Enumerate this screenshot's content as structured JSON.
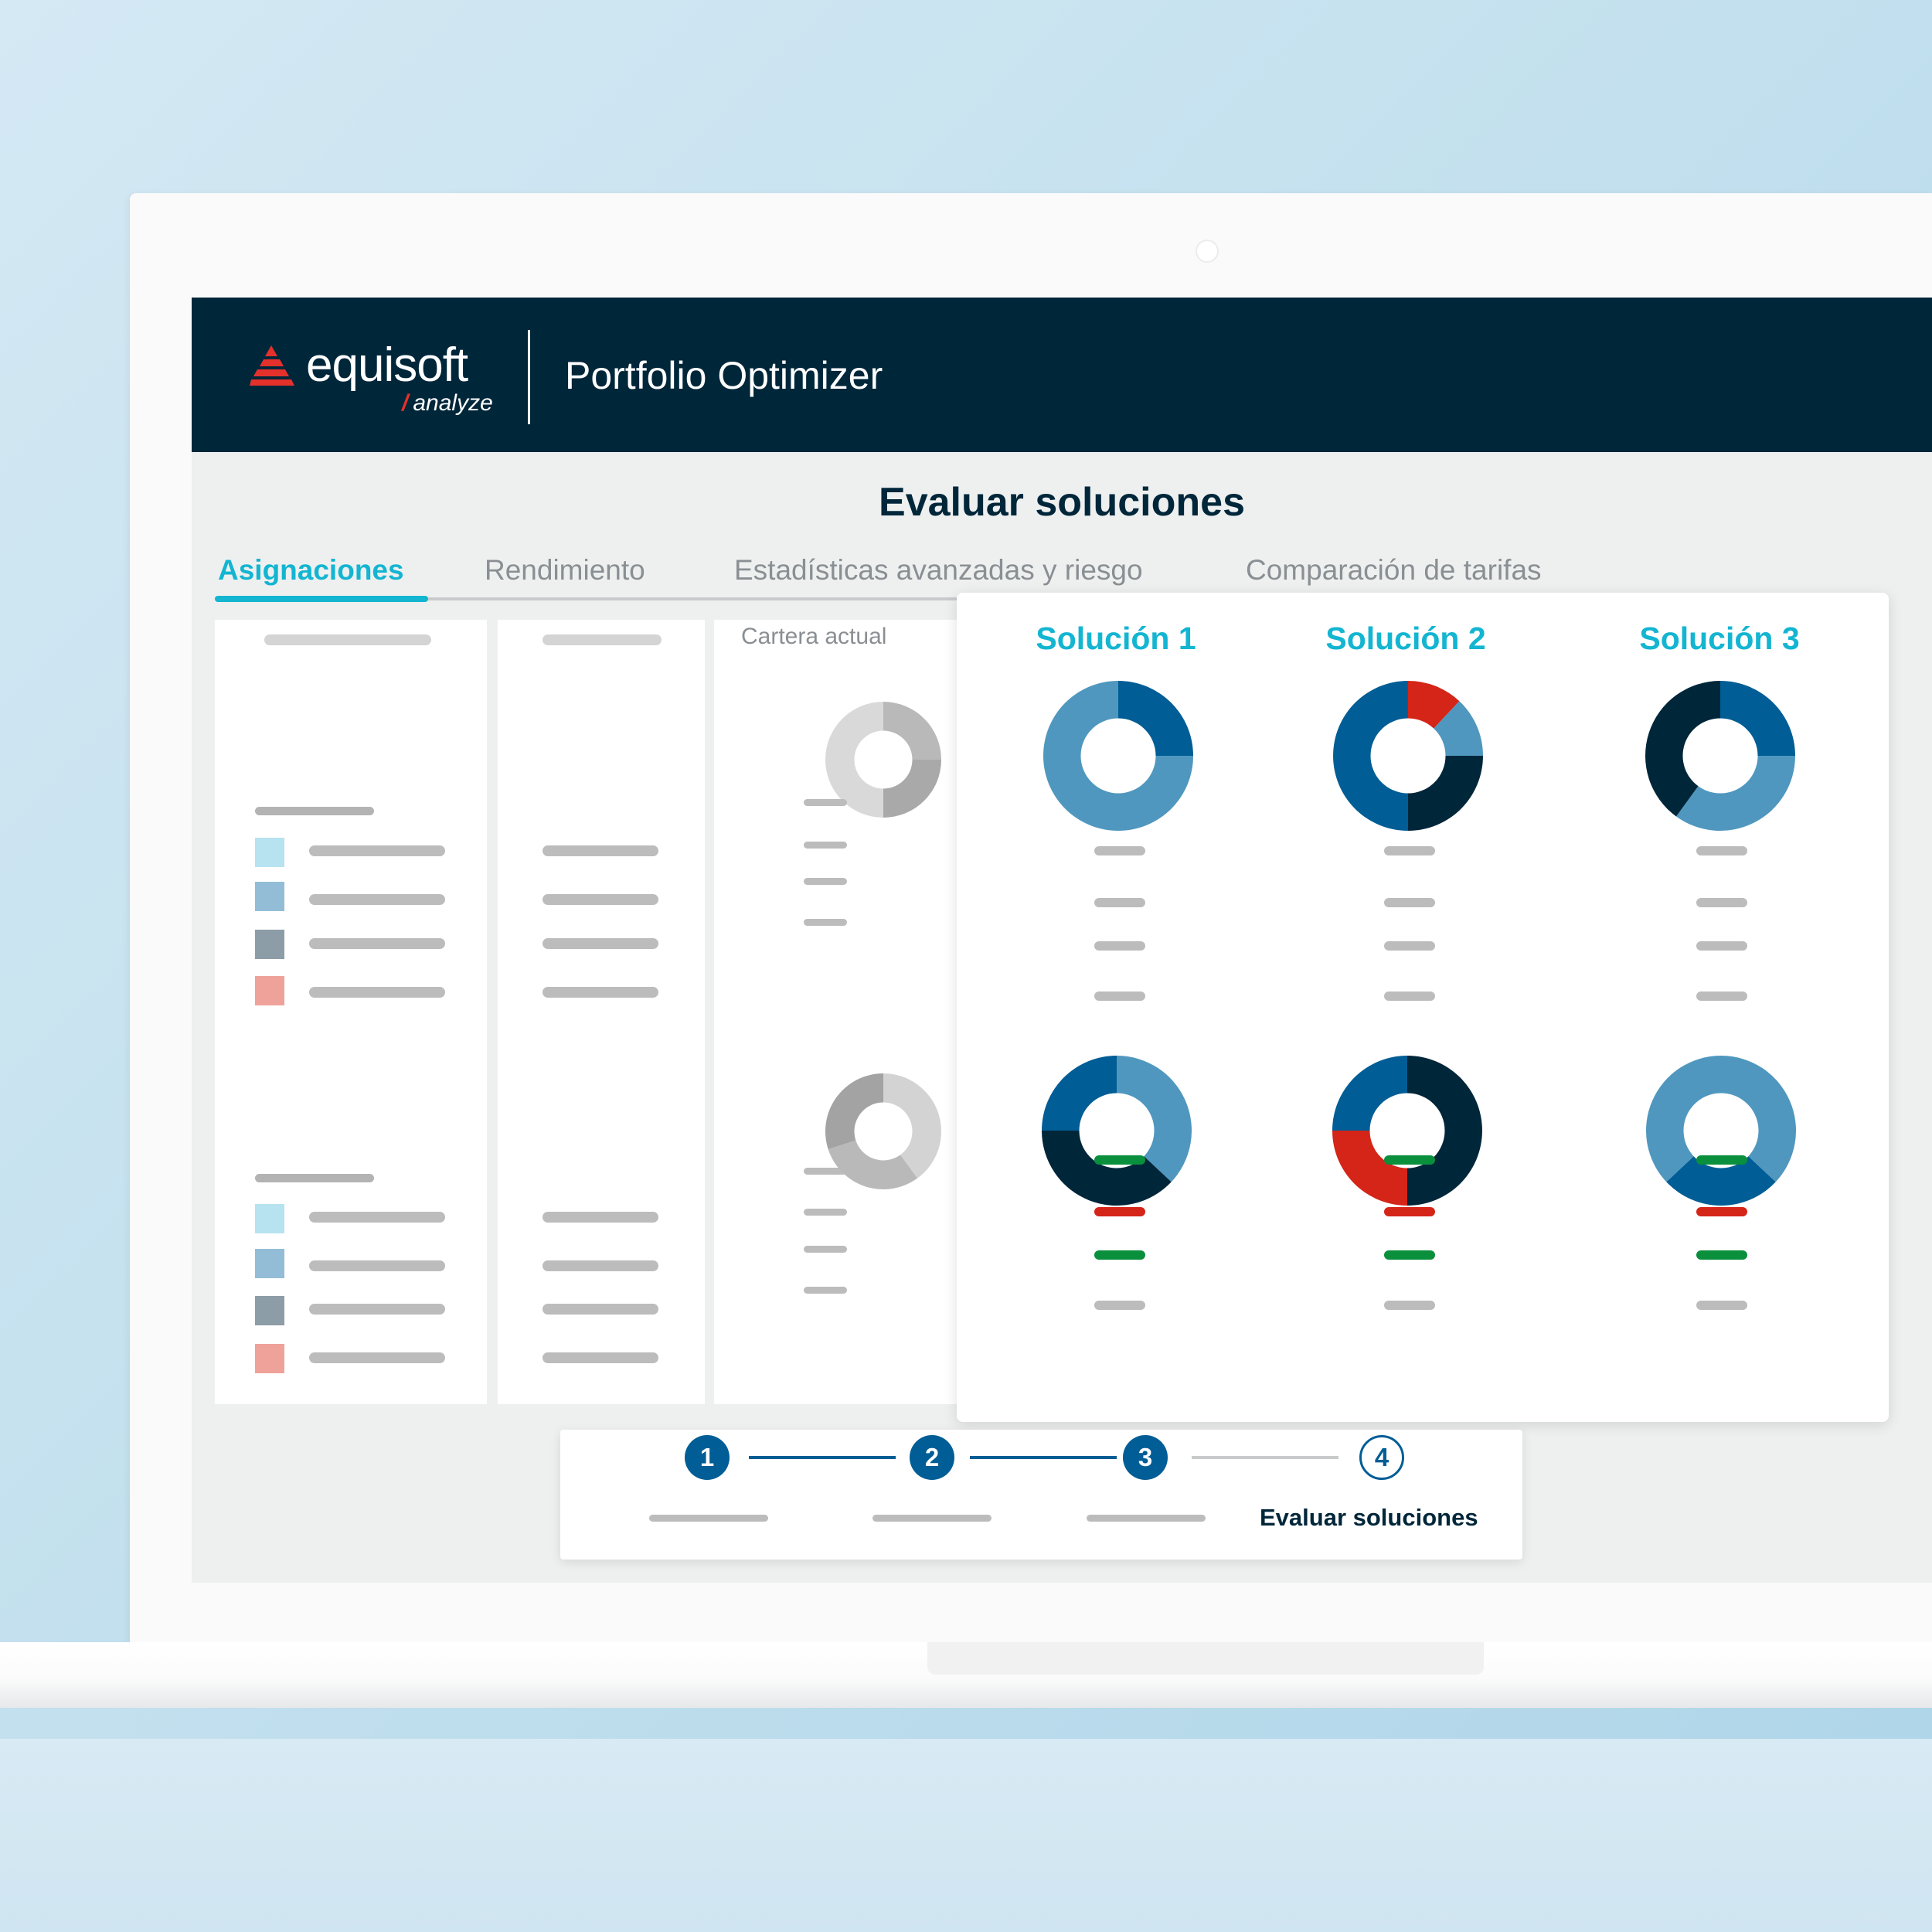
{
  "brand": {
    "name": "equisoft",
    "sub": "analyze"
  },
  "header": {
    "app_title": "Portfolio Optimizer"
  },
  "page": {
    "title": "Evaluar soluciones"
  },
  "tabs": [
    {
      "label": "Asignaciones",
      "active": true
    },
    {
      "label": "Rendimiento",
      "active": false
    },
    {
      "label": "Estadísticas avanzadas y riesgo",
      "active": false
    },
    {
      "label": "Comparación de tarifas",
      "active": false
    }
  ],
  "current_portfolio": {
    "label": "Cartera actual"
  },
  "solutions": [
    {
      "title": "Solución 1"
    },
    {
      "title": "Solución 2"
    },
    {
      "title": "Solución 3"
    }
  ],
  "stepper": {
    "steps": [
      {
        "number": "1",
        "state": "done"
      },
      {
        "number": "2",
        "state": "done"
      },
      {
        "number": "3",
        "state": "done"
      },
      {
        "number": "4",
        "state": "current",
        "label": "Evaluar soluciones"
      }
    ]
  },
  "colors": {
    "header_bg": "#00263a",
    "accent": "#13b5d1",
    "navy": "#00263a",
    "blue": "#005d95",
    "mid_blue": "#4f97be",
    "red": "#d42518",
    "green": "#0a8f3c",
    "gray_mark": "#bcbcbc"
  },
  "chart_data": [
    {
      "type": "pie",
      "name": "cartera-actual-1",
      "colors": [
        "#b9b9b9",
        "#a9a9a9",
        "#d9d9d9"
      ],
      "values": [
        25,
        25,
        50
      ]
    },
    {
      "type": "pie",
      "name": "cartera-actual-2",
      "colors": [
        "#d3d3d3",
        "#b9b9b9",
        "#a3a3a3"
      ],
      "values": [
        40,
        30,
        30
      ]
    },
    {
      "type": "pie",
      "name": "solucion-1-a",
      "colors": [
        "#005d95",
        "#4f97be"
      ],
      "values": [
        25,
        75
      ]
    },
    {
      "type": "pie",
      "name": "solucion-2-a",
      "colors": [
        "#d42518",
        "#4f97be",
        "#00263a",
        "#005d95"
      ],
      "values": [
        12,
        13,
        25,
        50
      ]
    },
    {
      "type": "pie",
      "name": "solucion-3-a",
      "colors": [
        "#005d95",
        "#4f97be",
        "#00263a"
      ],
      "values": [
        25,
        35,
        40
      ]
    },
    {
      "type": "pie",
      "name": "solucion-1-b",
      "colors": [
        "#4f97be",
        "#00263a",
        "#005d95"
      ],
      "values": [
        37,
        38,
        25
      ]
    },
    {
      "type": "pie",
      "name": "solucion-2-b",
      "colors": [
        "#00263a",
        "#d42518",
        "#005d95"
      ],
      "values": [
        50,
        25,
        25
      ]
    },
    {
      "type": "pie",
      "name": "solucion-3-b",
      "colors": [
        "#4f97be",
        "#005d95",
        "#4f97be"
      ],
      "values": [
        37,
        26,
        37
      ]
    }
  ]
}
